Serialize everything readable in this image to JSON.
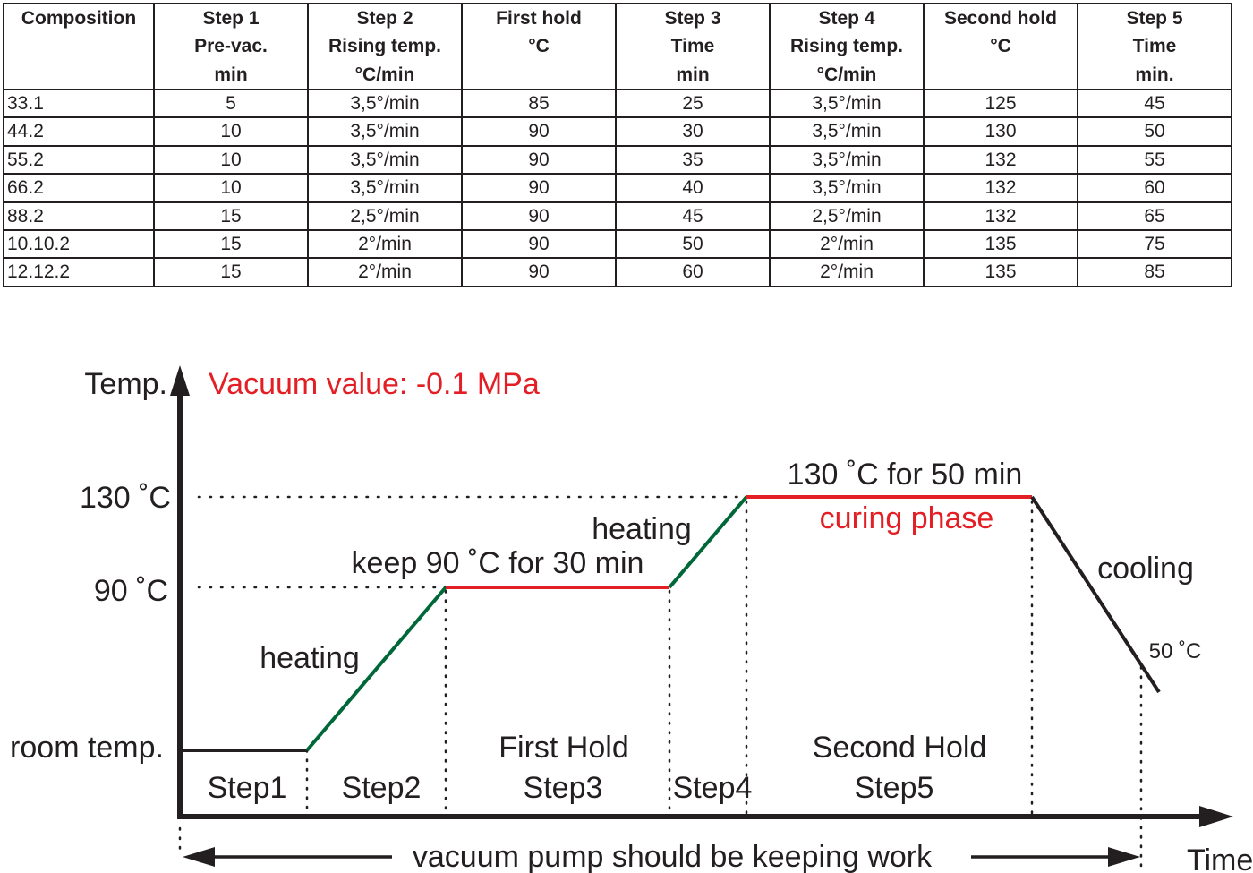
{
  "table": {
    "headers": [
      [
        "Composition",
        "",
        ""
      ],
      [
        "Step 1",
        "Pre-vac.",
        "min"
      ],
      [
        "Step 2",
        "Rising temp.",
        "°C/min"
      ],
      [
        "First hold",
        "°C",
        ""
      ],
      [
        "Step 3",
        "Time",
        "min"
      ],
      [
        "Step 4",
        "Rising temp.",
        "°C/min"
      ],
      [
        "Second hold",
        "°C",
        ""
      ],
      [
        "Step 5",
        "Time",
        "min."
      ]
    ],
    "rows": [
      [
        "33.1",
        "5",
        "3,5°/min",
        "85",
        "25",
        "3,5°/min",
        "125",
        "45"
      ],
      [
        "44.2",
        "10",
        "3,5°/min",
        "90",
        "30",
        "3,5°/min",
        "130",
        "50"
      ],
      [
        "55.2",
        "10",
        "3,5°/min",
        "90",
        "35",
        "3,5°/min",
        "132",
        "55"
      ],
      [
        "66.2",
        "10",
        "3,5°/min",
        "90",
        "40",
        "3,5°/min",
        "132",
        "60"
      ],
      [
        "88.2",
        "15",
        "2,5°/min",
        "90",
        "45",
        "2,5°/min",
        "132",
        "65"
      ],
      [
        "10.10.2",
        "15",
        "2°/min",
        "90",
        "50",
        "2°/min",
        "135",
        "75"
      ],
      [
        "12.12.2",
        "15",
        "2°/min",
        "90",
        "60",
        "2°/min",
        "135",
        "85"
      ]
    ]
  },
  "diagram": {
    "y_axis_label": "Temp.",
    "x_axis_label": "Time",
    "vacuum_note": "Vacuum value: -0.1 MPa",
    "temp_130": "130 ˚C",
    "temp_90": "90 ˚C",
    "room_temp": "room temp.",
    "temp_50": "50 ˚C",
    "heating_1": "heating",
    "heating_2": "heating",
    "hold_90_note": "keep 90 ˚C for 30 min",
    "hold_130_note": "130 ˚C for 50 min",
    "curing_phase": "curing phase",
    "cooling": "cooling",
    "step1": "Step1",
    "step2": "Step2",
    "first_hold": "First Hold",
    "step3": "Step3",
    "step4": "Step4",
    "second_hold": "Second Hold",
    "step5": "Step5",
    "vacuum_pump_note": "vacuum pump should be keeping work",
    "colors": {
      "axis": "#231f20",
      "heating": "#006838",
      "hold": "#e31e24",
      "accent_text": "#e31e24"
    }
  }
}
